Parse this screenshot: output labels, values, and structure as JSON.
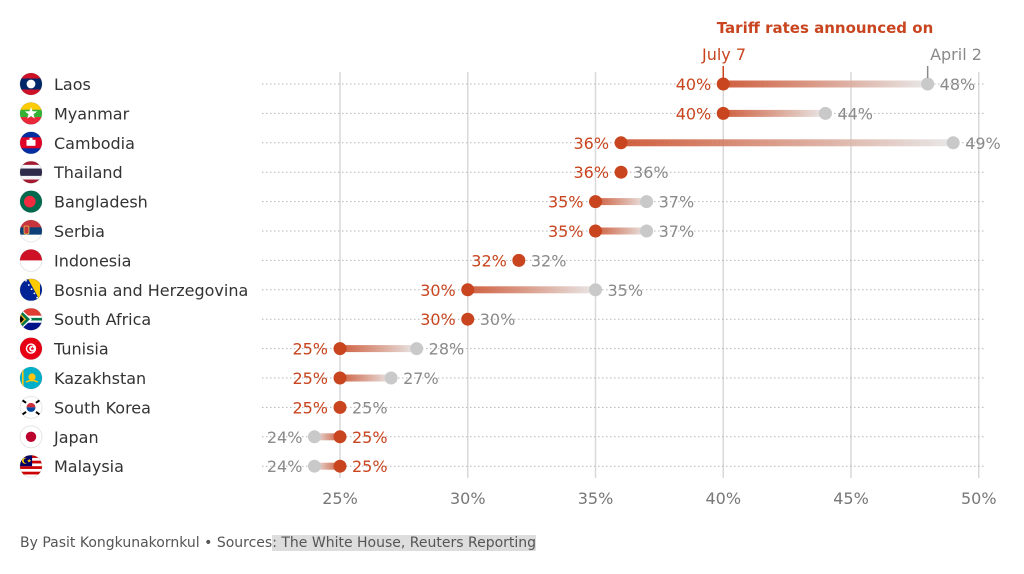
{
  "colors": {
    "july": "#c8451f",
    "april": "#c9c9c9",
    "april_text": "#8a8a8a",
    "grid": "#d9d9d9",
    "dots": "#b5b5b5"
  },
  "chart_data": {
    "type": "dumbbell",
    "title": "Tariff rates announced on",
    "xlim": [
      22.5,
      51
    ],
    "xticks": [
      "25%",
      "30%",
      "35%",
      "40%",
      "45%",
      "50%"
    ],
    "xtick_values": [
      25,
      30,
      35,
      40,
      45,
      50
    ],
    "series_labels": {
      "july": "July 7",
      "april": "April 2"
    },
    "categories": [
      "Laos",
      "Myanmar",
      "Cambodia",
      "Thailand",
      "Bangladesh",
      "Serbia",
      "Indonesia",
      "Bosnia and Herzegovina",
      "South Africa",
      "Tunisia",
      "Kazakhstan",
      "South Korea",
      "Japan",
      "Malaysia"
    ],
    "flag_icons": [
      "laos-flag-icon",
      "myanmar-flag-icon",
      "cambodia-flag-icon",
      "thailand-flag-icon",
      "bangladesh-flag-icon",
      "serbia-flag-icon",
      "indonesia-flag-icon",
      "bosnia-flag-icon",
      "south-africa-flag-icon",
      "tunisia-flag-icon",
      "kazakhstan-flag-icon",
      "south-korea-flag-icon",
      "japan-flag-icon",
      "malaysia-flag-icon"
    ],
    "july": [
      40,
      40,
      36,
      36,
      35,
      35,
      32,
      30,
      30,
      25,
      25,
      25,
      25,
      25
    ],
    "april": [
      48,
      44,
      49,
      36,
      37,
      37,
      32,
      35,
      30,
      28,
      27,
      25,
      24,
      24
    ],
    "july_labels": [
      "40%",
      "40%",
      "36%",
      "36%",
      "35%",
      "35%",
      "32%",
      "30%",
      "30%",
      "25%",
      "25%",
      "25%",
      "25%",
      "25%"
    ],
    "april_labels": [
      "48%",
      "44%",
      "49%",
      "36%",
      "37%",
      "37%",
      "32%",
      "35%",
      "30%",
      "28%",
      "27%",
      "25%",
      "24%",
      "24%"
    ]
  },
  "footer": {
    "byline": "By Pasit Kongkunakornkul • Sources",
    "sources": ": The White House, Reuters Reporting"
  }
}
